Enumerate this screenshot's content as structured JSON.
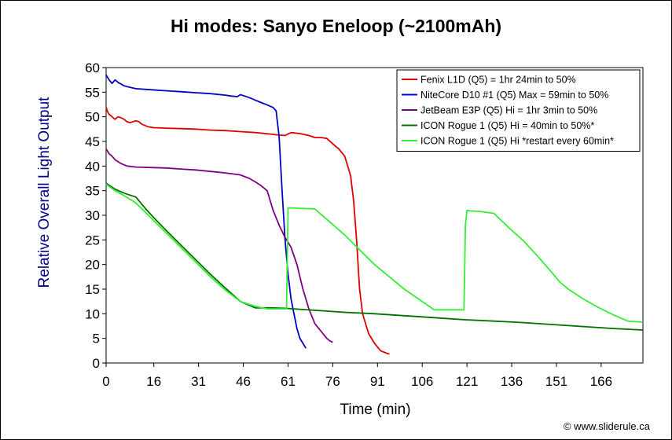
{
  "chart_data": {
    "type": "line",
    "title": "Hi modes: Sanyo Eneloop (~2100mAh)",
    "xlabel": "Time (min)",
    "ylabel": "Relative Overall Light Output",
    "xlim": [
      0,
      180
    ],
    "ylim": [
      0,
      60
    ],
    "xticks": [
      0,
      16,
      31,
      46,
      61,
      76,
      91,
      106,
      121,
      136,
      151,
      166
    ],
    "yticks": [
      0,
      5,
      10,
      15,
      20,
      25,
      30,
      35,
      40,
      45,
      50,
      55,
      60
    ],
    "grid": false,
    "legend_position": "top-right",
    "series": [
      {
        "name": "Fenix L1D (Q5) = 1hr 24min to 50%",
        "color": "#e00000",
        "x": [
          0,
          0.5,
          1,
          2,
          3,
          4,
          5,
          6,
          7,
          8,
          10,
          11,
          12,
          14,
          16,
          20,
          25,
          30,
          35,
          40,
          45,
          50,
          55,
          58,
          60,
          61,
          62,
          65,
          68,
          70,
          72,
          74,
          76,
          77,
          78,
          80,
          82,
          83,
          84,
          85,
          86,
          88,
          90,
          92,
          94,
          95
        ],
        "y": [
          52,
          51,
          50.5,
          50,
          49.5,
          50,
          49.8,
          49.5,
          49,
          48.8,
          49.2,
          49,
          48.5,
          48,
          47.8,
          47.7,
          47.6,
          47.5,
          47.3,
          47.2,
          47,
          46.8,
          46.5,
          46.3,
          46.2,
          46.5,
          46.8,
          46.6,
          46.2,
          45.8,
          45.8,
          45.6,
          44.5,
          44,
          43.5,
          42,
          38,
          33,
          25,
          15,
          10,
          6,
          4,
          2.5,
          2,
          1.8
        ]
      },
      {
        "name": "NiteCore D10 #1 (Q5) Max = 59min to 50%",
        "color": "#0000cc",
        "x": [
          0,
          1,
          2,
          3,
          4,
          6,
          8,
          10,
          15,
          20,
          25,
          30,
          35,
          40,
          42,
          44,
          45,
          46,
          48,
          50,
          52,
          54,
          56,
          57,
          58,
          59,
          60,
          61,
          62,
          63,
          64,
          65,
          66,
          67
        ],
        "y": [
          58.5,
          57.5,
          56.8,
          57.5,
          57,
          56.3,
          56,
          55.7,
          55.5,
          55.3,
          55.1,
          54.9,
          54.7,
          54.4,
          54.2,
          54.1,
          54.5,
          54.3,
          53.9,
          53.4,
          52.9,
          52.4,
          51.9,
          51.2,
          46,
          35,
          25,
          18,
          13,
          10,
          7,
          5,
          4,
          3
        ]
      },
      {
        "name": "JetBeam E3P (Q5) Hi = 1hr 3min to 50%",
        "color": "#800080",
        "x": [
          0,
          1,
          2,
          3,
          5,
          7,
          10,
          15,
          20,
          25,
          30,
          35,
          40,
          45,
          48,
          50,
          52,
          54,
          55,
          56,
          58,
          60,
          62,
          64,
          66,
          68,
          70,
          72,
          74,
          75,
          76
        ],
        "y": [
          43.5,
          42.5,
          42,
          41.3,
          40.5,
          40,
          39.8,
          39.7,
          39.6,
          39.4,
          39.2,
          38.9,
          38.6,
          38.2,
          37.5,
          36.8,
          36,
          35,
          33,
          31,
          28,
          25.5,
          23.5,
          20,
          15,
          11,
          8,
          6.5,
          5,
          4.5,
          4.2
        ]
      },
      {
        "name": "ICON Rogue 1 (Q5) Hi = 40min to 50%*",
        "color": "#007000",
        "x": [
          0,
          3,
          6,
          10,
          13,
          16,
          20,
          25,
          30,
          35,
          40,
          45,
          50,
          55,
          60,
          70,
          80,
          90,
          100,
          110,
          120,
          130,
          140,
          150,
          160,
          170,
          180
        ],
        "y": [
          36.5,
          35.3,
          34.5,
          33.7,
          31.5,
          29.5,
          27,
          24,
          21,
          18,
          15.2,
          12.5,
          11.2,
          11.2,
          11.1,
          10.7,
          10.3,
          10,
          9.6,
          9.2,
          8.8,
          8.5,
          8.2,
          7.8,
          7.4,
          7,
          6.7
        ]
      },
      {
        "name": "ICON Rogue 1 (Q5) Hi *restart every 60min*",
        "color": "#33ee33",
        "x": [
          0,
          3,
          6,
          10,
          15,
          20,
          25,
          30,
          35,
          40,
          45,
          50,
          54,
          57,
          60,
          60.5,
          61,
          62,
          65,
          70,
          80,
          90,
          100,
          110,
          115,
          120,
          120.5,
          121,
          122,
          125,
          130,
          135,
          140,
          145,
          150,
          152,
          155,
          160,
          165,
          170,
          175,
          180
        ],
        "y": [
          36.3,
          35,
          34,
          32.5,
          29.5,
          26.5,
          23.5,
          20.5,
          17.5,
          14.8,
          12.5,
          11.5,
          11,
          11,
          11,
          11,
          31.5,
          31.5,
          31.4,
          31.3,
          26,
          20,
          15,
          10.8,
          10.8,
          10.8,
          28,
          31,
          30.9,
          30.8,
          30.4,
          27.5,
          24.8,
          21.5,
          18,
          16.5,
          15,
          13,
          11.3,
          9.8,
          8.5,
          8.3
        ]
      }
    ]
  },
  "credit": "© www.sliderule.ca"
}
